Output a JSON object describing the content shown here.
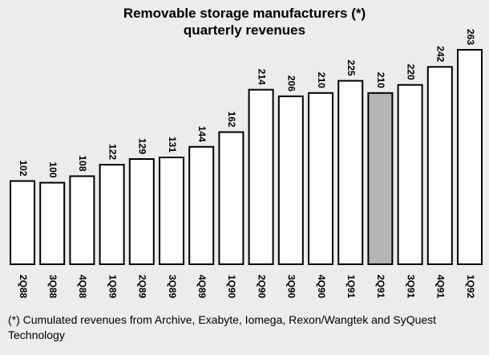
{
  "chart_data": {
    "type": "bar",
    "title_lines": [
      "Removable storage manufacturers (*)",
      "quarterly revenues"
    ],
    "categories": [
      "2Q88",
      "3Q88",
      "4Q88",
      "1Q89",
      "2Q89",
      "3Q89",
      "4Q89",
      "1Q90",
      "2Q90",
      "3Q90",
      "4Q90",
      "1Q91",
      "2Q91",
      "3Q91",
      "4Q91",
      "1Q92"
    ],
    "series": [
      {
        "values": [
          102,
          100,
          108,
          122,
          129,
          131,
          144,
          162,
          214,
          206,
          210,
          225,
          210,
          220,
          242,
          263
        ]
      }
    ],
    "highlighted_category": "2Q91",
    "ylim": [
      0,
      263
    ],
    "xlabel": "",
    "ylabel": "",
    "grid": false,
    "bar_color": "#ffffff",
    "highlight_color": "#b5b5b5",
    "footnote": "(*) Cumulated revenues from Archive, Exabyte, Iomega, Rexon/Wangtek and SyQuest Technology"
  }
}
